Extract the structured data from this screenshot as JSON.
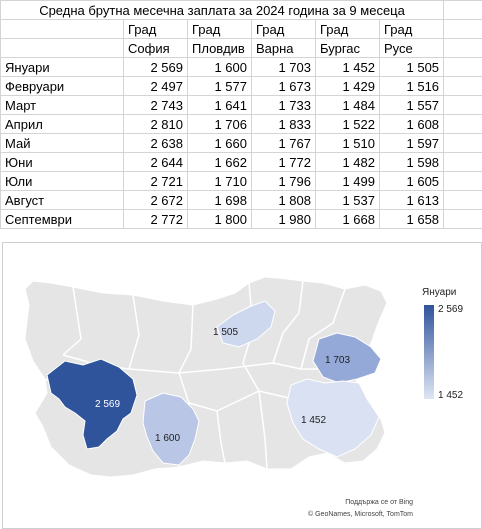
{
  "sheet": {
    "title": "Средна брутна месечна заплата за 2024 година за 9 месеца",
    "header_top": [
      "Град",
      "Град",
      "Град",
      "Град",
      "Град"
    ],
    "header_cities": [
      "София",
      "Пловдив",
      "Варна",
      "Бургас",
      "Русе"
    ],
    "rows": [
      {
        "month": "Януари",
        "values": [
          "2 569",
          "1 600",
          "1 703",
          "1 452",
          "1 505"
        ]
      },
      {
        "month": "Февруари",
        "values": [
          "2 497",
          "1 577",
          "1 673",
          "1 429",
          "1 516"
        ]
      },
      {
        "month": "Март",
        "values": [
          "2 743",
          "1 641",
          "1 733",
          "1 484",
          "1 557"
        ]
      },
      {
        "month": "Април",
        "values": [
          "2 810",
          "1 706",
          "1 833",
          "1 522",
          "1 608"
        ]
      },
      {
        "month": "Май",
        "values": [
          "2 638",
          "1 660",
          "1 767",
          "1 510",
          "1 597"
        ]
      },
      {
        "month": "Юни",
        "values": [
          "2 644",
          "1 662",
          "1 772",
          "1 482",
          "1 598"
        ]
      },
      {
        "month": "Юли",
        "values": [
          "2 721",
          "1 710",
          "1 796",
          "1 499",
          "1 605"
        ]
      },
      {
        "month": "Август",
        "values": [
          "2 672",
          "1 698",
          "1 808",
          "1 537",
          "1 613"
        ]
      },
      {
        "month": "Септември",
        "values": [
          "2 772",
          "1 800",
          "1 980",
          "1 668",
          "1 658"
        ]
      }
    ]
  },
  "map": {
    "legend_title": "Януари",
    "legend_max": "2 569",
    "legend_min": "1 452",
    "labels": {
      "sofia": "2 569",
      "plovdiv": "1 600",
      "varna": "1 703",
      "burgas": "1 452",
      "ruse": "1 505"
    },
    "colors": {
      "base": "#e5e5e5",
      "border": "#ffffff",
      "sofia": "#2f549b",
      "plovdiv": "#b9c6e6",
      "varna": "#95a9d8",
      "burgas": "#d9e1f3",
      "ruse": "#cdd8ef"
    },
    "attribution_line1": "Поддържа се от Bing",
    "attribution_line2": "© GeoNames, Microsoft, TomTom"
  }
}
